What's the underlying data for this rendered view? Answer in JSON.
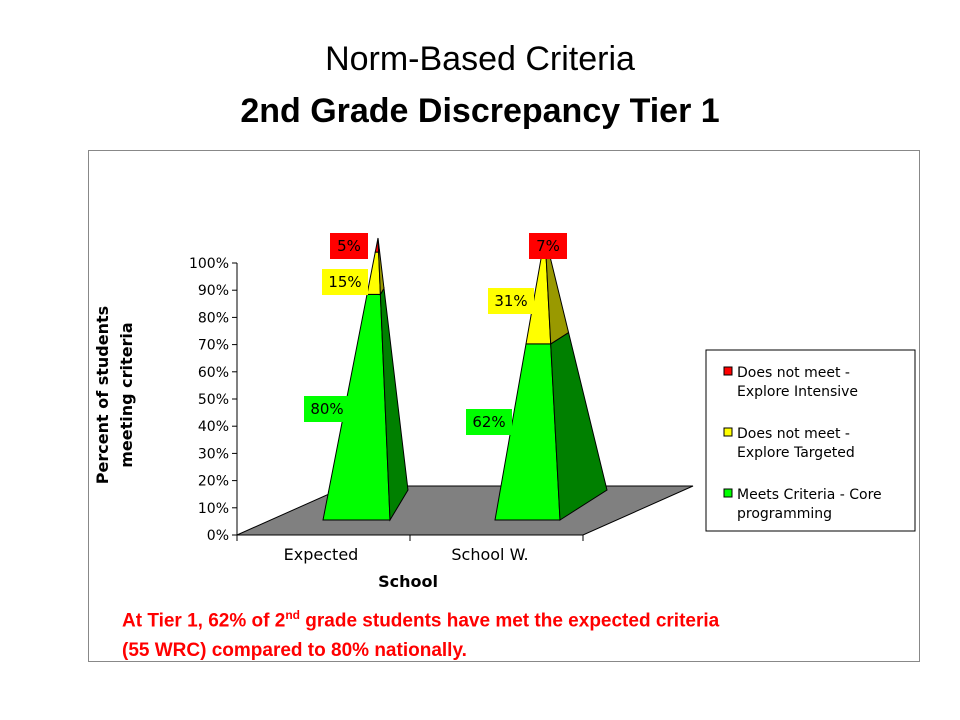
{
  "title": {
    "line1": "Norm-Based Criteria",
    "line2": "2nd Grade Discrepancy Tier 1"
  },
  "chart_data": {
    "type": "bar",
    "style": "stacked-3d-pyramid",
    "categories": [
      "Expected",
      "School W."
    ],
    "series": [
      {
        "name": "Meets Criteria - Core programming",
        "values": [
          80,
          62
        ],
        "labels": [
          "80%",
          "62%"
        ],
        "color": "#00ff00"
      },
      {
        "name": "Does not meet - Explore Targeted",
        "values": [
          15,
          31
        ],
        "labels": [
          "15%",
          "31%"
        ],
        "color": "#ffff00"
      },
      {
        "name": "Does not meet - Explore Intensive",
        "values": [
          5,
          7
        ],
        "labels": [
          "5%",
          "7%"
        ],
        "color": "#ff0000"
      }
    ],
    "ylim": [
      0,
      100
    ],
    "yticks": [
      "0%",
      "10%",
      "20%",
      "30%",
      "40%",
      "50%",
      "60%",
      "70%",
      "80%",
      "90%",
      "100%"
    ],
    "xlabel": "School",
    "ylabel_line1": "Percent of students",
    "ylabel_line2": "meeting criteria",
    "legend": {
      "placement": "right",
      "entries": [
        {
          "line1": "Does not meet -",
          "line2": "Explore Intensive",
          "color": "#ff0000"
        },
        {
          "line1": "Does not meet -",
          "line2": "Explore Targeted",
          "color": "#ffff00"
        },
        {
          "line1": "Meets Criteria - Core",
          "line2": "programming",
          "color": "#00ff00"
        }
      ]
    },
    "floor_color": "#808080"
  },
  "caption": {
    "part1": "At Tier 1, 62% of 2",
    "sup": "nd",
    "part2": " grade students have met the expected criteria",
    "line2": "(55 WRC) compared to 80% nationally."
  }
}
